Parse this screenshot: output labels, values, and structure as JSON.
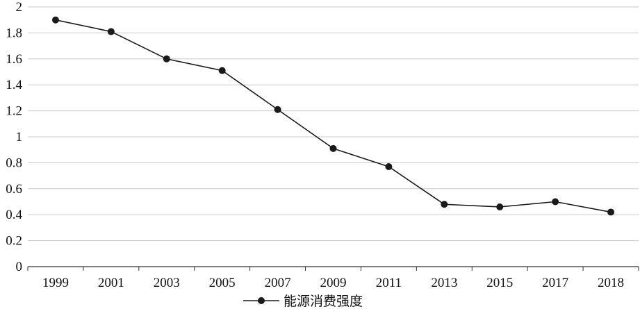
{
  "chart_data": {
    "type": "line",
    "categories": [
      "1999",
      "2001",
      "2003",
      "2005",
      "2007",
      "2009",
      "2011",
      "2013",
      "2015",
      "2017",
      "2018"
    ],
    "series": [
      {
        "name": "能源消费强度",
        "values": [
          1.9,
          1.81,
          1.6,
          1.51,
          1.21,
          0.91,
          0.77,
          0.48,
          0.46,
          0.5,
          0.42
        ]
      }
    ],
    "ylim": [
      0,
      2
    ],
    "yticks": [
      "0",
      "0.2",
      "0.4",
      "0.6",
      "0.8",
      "1",
      "1.2",
      "1.4",
      "1.6",
      "1.8",
      "2"
    ],
    "grid": true,
    "legend": "bottom-center",
    "colors": {
      "line": "#1a1a1a",
      "grid": "#c8c8c8",
      "axis": "#333333"
    }
  }
}
